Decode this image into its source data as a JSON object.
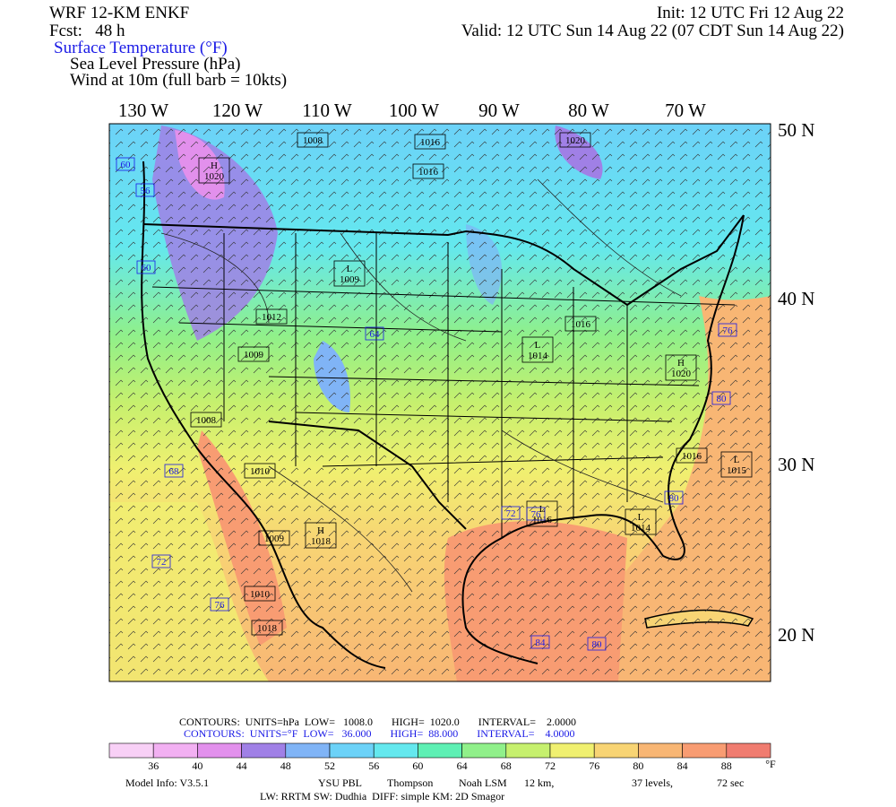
{
  "header": {
    "model": "WRF 12-KM ENKF",
    "forecast": "Fcst:   48 h",
    "init": "Init: 12 UTC Fri 12 Aug 22",
    "valid": "Valid: 12 UTC Sun 14 Aug 22 (07 CDT Sun 14 Aug 22)",
    "fields": [
      "Surface Temperature (°F)",
      "Sea Level Pressure (hPa)",
      "Wind at 10m (full barb = 10kts)"
    ]
  },
  "map": {
    "longitude_labels": [
      "130 W",
      "120 W",
      "110 W",
      "100 W",
      "90 W",
      "80 W",
      "70 W"
    ],
    "latitude_labels": [
      "50 N",
      "40 N",
      "30 N",
      "20 N"
    ],
    "pressure_labels": [
      "1008",
      "1016",
      "1020",
      "H\n1020",
      "L\n1009",
      "1016",
      "L\n1014",
      "H\n1020",
      "1012",
      "1009",
      "1008",
      "1010",
      "L\n1015",
      "1016",
      "L\n1014",
      "1016",
      "1009",
      "H\n1018",
      "1010",
      "1018",
      "L\n1016"
    ],
    "temperature_labels": [
      "60",
      "68",
      "72",
      "76",
      "80",
      "84",
      "80",
      "76",
      "80",
      "76",
      "72",
      "64",
      "60",
      "56"
    ]
  },
  "contour_info": {
    "pressure": "CONTOURS:  UNITS=hPa  LOW=   1008.0       HIGH=  1020.0       INTERVAL=    2.0000",
    "temperature": "CONTOURS:  UNITS=°F  LOW=   36.000       HIGH=  88.000       INTERVAL=    4.0000"
  },
  "colorbar": {
    "colors": [
      "#f8d0f6",
      "#f2b0f2",
      "#e290ec",
      "#a080e6",
      "#80b4f6",
      "#6cd2f8",
      "#64e8ee",
      "#5ef0b4",
      "#90f08a",
      "#c6f06e",
      "#f0f070",
      "#f8d474",
      "#f8b674",
      "#f89c72",
      "#f07c70"
    ],
    "ticks": [
      "36",
      "40",
      "44",
      "48",
      "52",
      "56",
      "60",
      "64",
      "68",
      "72",
      "76",
      "80",
      "84",
      "88"
    ],
    "unit": "°F"
  },
  "footer": {
    "line1": [
      "Model Info: V3.5.1",
      "YSU PBL",
      "Thompson",
      "Noah LSM",
      "12 km,",
      "37 levels,",
      "72 sec"
    ],
    "line2": "LW: RRTM SW: Dudhia  DIFF: simple KM: 2D Smagor"
  }
}
